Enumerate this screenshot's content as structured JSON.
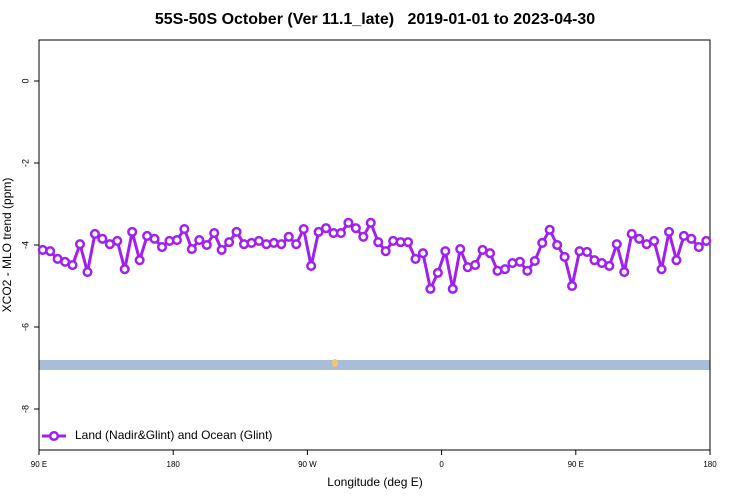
{
  "chart_data": {
    "type": "line",
    "title": "55S-50S October (Ver 11.1_late)   2019-01-01 to 2023-04-30",
    "x_label": "Longitude (deg E)",
    "y_label": "XCO2 - MLO trend (ppm)",
    "x": [
      92.5,
      97.5,
      102.5,
      107.5,
      112.5,
      117.5,
      122.5,
      127.5,
      132.5,
      137.5,
      142.5,
      147.5,
      152.5,
      157.5,
      162.5,
      167.5,
      172.5,
      177.5,
      182.5,
      187.5,
      192.5,
      197.5,
      202.5,
      207.5,
      212.5,
      217.5,
      222.5,
      227.5,
      232.5,
      237.5,
      242.5,
      247.5,
      252.5,
      257.5,
      262.5,
      267.5,
      272.5,
      277.5,
      282.5,
      287.5,
      292.5,
      297.5,
      302.5,
      307.5,
      312.5,
      317.5,
      322.5,
      327.5,
      332.5,
      337.5,
      342.5,
      347.5,
      352.5,
      357.5,
      362.5,
      367.5,
      372.5,
      377.5,
      382.5,
      387.5,
      392.5,
      397.5,
      402.5,
      407.5,
      412.5,
      417.5,
      422.5,
      427.5,
      432.5,
      437.5,
      442.5,
      447.5,
      452.5,
      457.5,
      462.5,
      467.5,
      472.5,
      477.5,
      482.5,
      487.5,
      492.5,
      497.5,
      502.5,
      507.5,
      512.5,
      517.5,
      522.5,
      527.5,
      532.5,
      537.5
    ],
    "series": [
      {
        "name": "Land (Nadir&Glint) and Ocean (Glint)",
        "color": "#a020f0",
        "values": [
          -4.12,
          -4.15,
          -4.34,
          -4.41,
          -4.49,
          -3.98,
          -4.66,
          -3.73,
          -3.85,
          -3.98,
          -3.9,
          -4.59,
          -3.68,
          -4.37,
          -3.78,
          -3.85,
          -4.05,
          -3.9,
          -3.88,
          -3.61,
          -4.1,
          -3.88,
          -4.0,
          -3.71,
          -4.12,
          -3.93,
          -3.68,
          -3.98,
          -3.95,
          -3.9,
          -3.98,
          -3.95,
          -3.98,
          -3.8,
          -3.98,
          -3.61,
          -4.51,
          -3.68,
          -3.59,
          -3.71,
          -3.71,
          -3.46,
          -3.59,
          -3.8,
          -3.46,
          -3.93,
          -4.15,
          -3.9,
          -3.93,
          -3.93,
          -4.34,
          -4.2,
          -5.07,
          -4.68,
          -4.15,
          -5.07,
          -4.1,
          -4.54,
          -4.49,
          -4.12,
          -4.2,
          -4.63,
          -4.59,
          -4.44,
          -4.41,
          -4.63,
          -4.39,
          -3.95,
          -3.63,
          -4.0,
          -4.29,
          -5.0,
          -4.15,
          -4.17,
          -4.37,
          -4.44,
          -4.51,
          -3.98,
          -4.66,
          -3.73,
          -3.85,
          -3.98,
          -3.9,
          -4.59,
          -3.68,
          -4.37,
          -3.78,
          -3.85,
          -4.05,
          -3.9
        ]
      }
    ],
    "xlim": [
      90,
      540
    ],
    "xticks": [
      {
        "value": 90,
        "label": "90 E"
      },
      180,
      {
        "value": 270,
        "label": "90 W"
      },
      {
        "value": 360,
        "label": "0"
      },
      {
        "value": 450,
        "label": "90 E"
      },
      {
        "value": 540,
        "label": "180"
      }
    ],
    "ylim": [
      -9,
      1
    ],
    "yticks": [
      0,
      -2,
      -4,
      -6,
      -8
    ],
    "legend": "bottom-left"
  }
}
